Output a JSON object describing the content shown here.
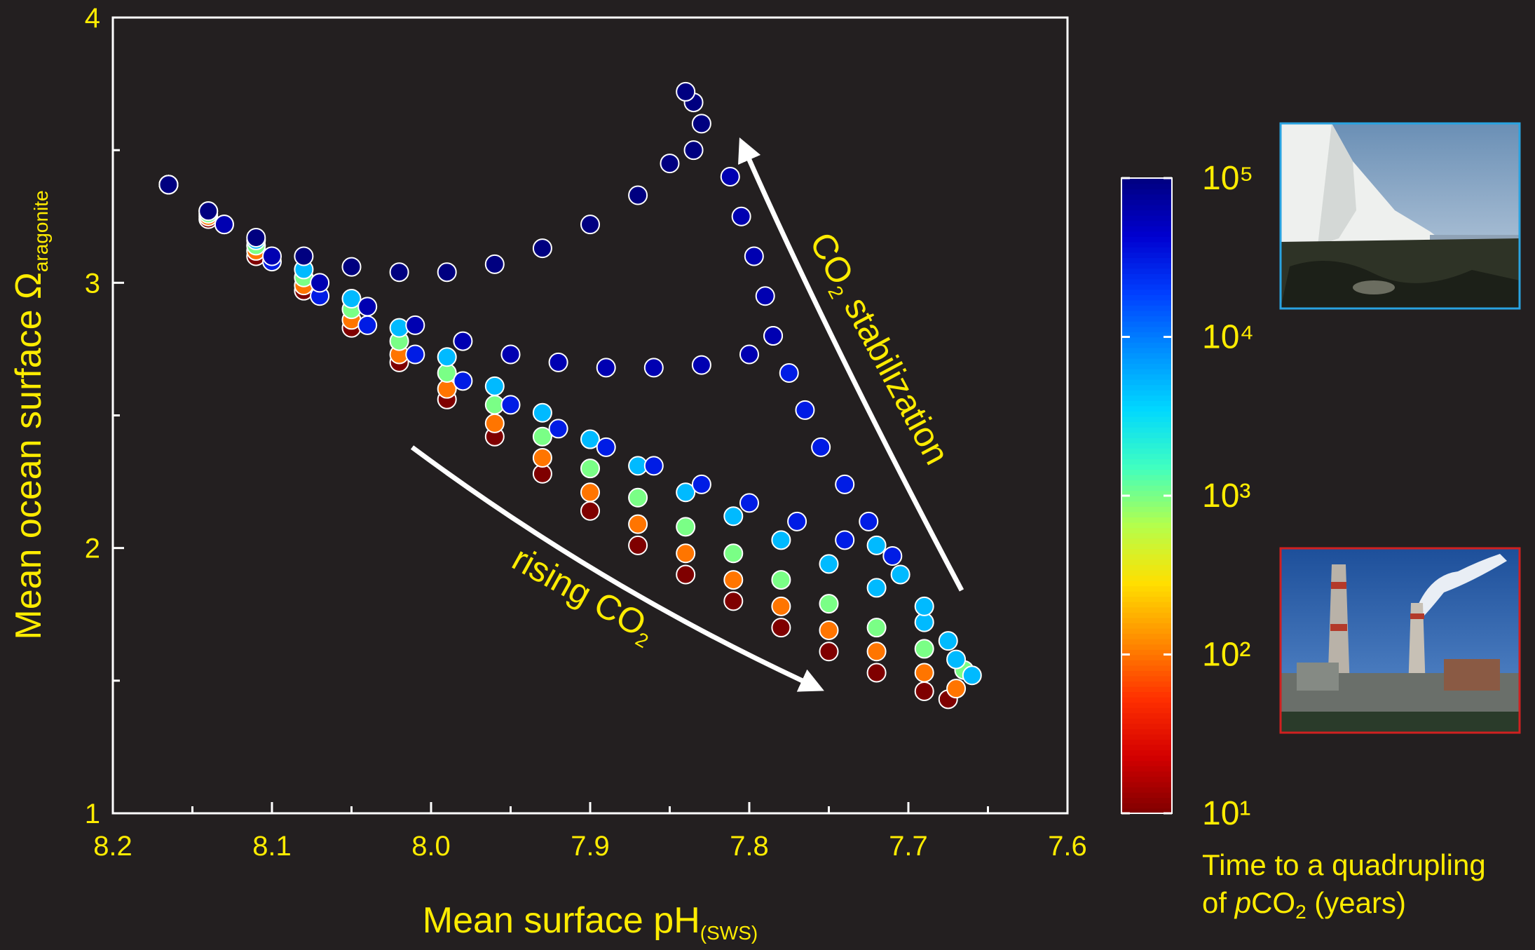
{
  "chart_data": {
    "type": "scatter",
    "x_label": "Mean surface pH",
    "x_label_sub": "(SWS)",
    "y_label": "Mean ocean surface Ω",
    "y_label_sub": "aragonite",
    "xlim": [
      8.2,
      7.6
    ],
    "xticks": [
      8.2,
      8.1,
      {
        "value": 8,
        "label": "8.0"
      },
      7.9,
      7.8,
      7.7,
      7.6
    ],
    "xticks_minor": [
      8.15,
      8.05,
      7.95,
      7.85,
      7.75,
      7.65
    ],
    "ylim": [
      1,
      4
    ],
    "yticks": [
      1,
      2,
      3,
      4
    ],
    "yticks_minor": [
      1.5,
      2.5,
      3.5
    ],
    "annotations": {
      "rising": "rising CO",
      "rising_sub": "2",
      "stab": "CO",
      "stab_sub": "2",
      "stab_rest": " stabilization"
    },
    "colorbar": {
      "clim": [
        10,
        100000
      ],
      "log": true,
      "colormap": [
        "#7f0000",
        "#d40000",
        "#ff3000",
        "#ff8c00",
        "#ffe000",
        "#b4ff4c",
        "#40ffc0",
        "#00d8ff",
        "#0090ff",
        "#0040ff",
        "#0000d0",
        "#000080"
      ],
      "ticks": [
        {
          "value": 10,
          "label": "10¹"
        },
        {
          "value": 100,
          "label": "10²"
        },
        {
          "value": 1000,
          "label": "10³"
        },
        {
          "value": 10000,
          "label": "10⁴"
        },
        {
          "value": 100000,
          "label": "10⁵"
        }
      ],
      "label_line1": "Time to a quadrupling",
      "label_of": "of ",
      "label_p": "p",
      "label_co": "CO",
      "label_sub": "2",
      "label_rest": " (years)"
    },
    "series": [
      {
        "time": 10,
        "x": [
          8.165,
          8.14,
          8.11,
          8.08,
          8.05,
          8.02,
          7.99,
          7.96,
          7.93,
          7.9,
          7.87,
          7.84,
          7.81,
          7.78,
          7.75,
          7.72,
          7.69,
          7.675
        ],
        "y": [
          3.37,
          3.24,
          3.1,
          2.97,
          2.83,
          2.7,
          2.56,
          2.42,
          2.28,
          2.14,
          2.01,
          1.9,
          1.8,
          1.7,
          1.61,
          1.53,
          1.46,
          1.43
        ]
      },
      {
        "time": 100,
        "x": [
          8.165,
          8.14,
          8.11,
          8.08,
          8.05,
          8.02,
          7.99,
          7.96,
          7.93,
          7.9,
          7.87,
          7.84,
          7.81,
          7.78,
          7.75,
          7.72,
          7.69,
          7.67
        ],
        "y": [
          3.37,
          3.25,
          3.12,
          2.99,
          2.86,
          2.73,
          2.6,
          2.47,
          2.34,
          2.21,
          2.09,
          1.98,
          1.88,
          1.78,
          1.69,
          1.61,
          1.53,
          1.47
        ]
      },
      {
        "time": 1000,
        "x": [
          8.165,
          8.14,
          8.11,
          8.08,
          8.05,
          8.02,
          7.99,
          7.96,
          7.93,
          7.9,
          7.87,
          7.84,
          7.81,
          7.78,
          7.75,
          7.72,
          7.69,
          7.665
        ],
        "y": [
          3.37,
          3.26,
          3.14,
          3.02,
          2.9,
          2.78,
          2.66,
          2.54,
          2.42,
          2.3,
          2.19,
          2.08,
          1.98,
          1.88,
          1.79,
          1.7,
          1.62,
          1.54
        ]
      },
      {
        "time": 5000,
        "x": [
          8.165,
          8.14,
          8.11,
          8.08,
          8.05,
          8.02,
          7.99,
          7.96,
          7.93,
          7.9,
          7.87,
          7.84,
          7.81,
          7.78,
          7.75,
          7.72,
          7.69,
          7.67,
          7.66,
          7.675,
          7.69,
          7.705,
          7.72
        ],
        "y": [
          3.37,
          3.27,
          3.16,
          3.05,
          2.94,
          2.83,
          2.72,
          2.61,
          2.51,
          2.41,
          2.31,
          2.21,
          2.12,
          2.03,
          1.94,
          1.85,
          1.72,
          1.58,
          1.52,
          1.65,
          1.78,
          1.9,
          2.01
        ]
      },
      {
        "time": 30000,
        "x": [
          8.165,
          8.13,
          8.1,
          8.07,
          8.04,
          8.01,
          7.98,
          7.95,
          7.92,
          7.89,
          7.86,
          7.83,
          7.8,
          7.77,
          7.74,
          7.71,
          7.725,
          7.74,
          7.755,
          7.765,
          7.775,
          7.785
        ],
        "y": [
          3.37,
          3.22,
          3.08,
          2.95,
          2.84,
          2.73,
          2.63,
          2.54,
          2.45,
          2.38,
          2.31,
          2.24,
          2.17,
          2.1,
          2.03,
          1.97,
          2.1,
          2.24,
          2.38,
          2.52,
          2.66,
          2.8
        ]
      },
      {
        "time": 60000,
        "x": [
          8.165,
          8.13,
          8.1,
          8.07,
          8.04,
          8.01,
          7.98,
          7.95,
          7.92,
          7.89,
          7.86,
          7.83,
          7.8,
          7.785,
          7.79,
          7.797,
          7.805,
          7.812
        ],
        "y": [
          3.37,
          3.22,
          3.1,
          3.0,
          2.91,
          2.84,
          2.78,
          2.73,
          2.7,
          2.68,
          2.68,
          2.69,
          2.73,
          2.8,
          2.95,
          3.1,
          3.25,
          3.4
        ]
      },
      {
        "time": 100000,
        "x": [
          8.165,
          8.14,
          8.11,
          8.08,
          8.05,
          8.02,
          7.99,
          7.96,
          7.93,
          7.9,
          7.87,
          7.85,
          7.835,
          7.83,
          7.835,
          7.84
        ],
        "y": [
          3.37,
          3.27,
          3.17,
          3.1,
          3.06,
          3.04,
          3.04,
          3.07,
          3.13,
          3.22,
          3.33,
          3.45,
          3.5,
          3.6,
          3.68,
          3.72
        ]
      }
    ]
  }
}
